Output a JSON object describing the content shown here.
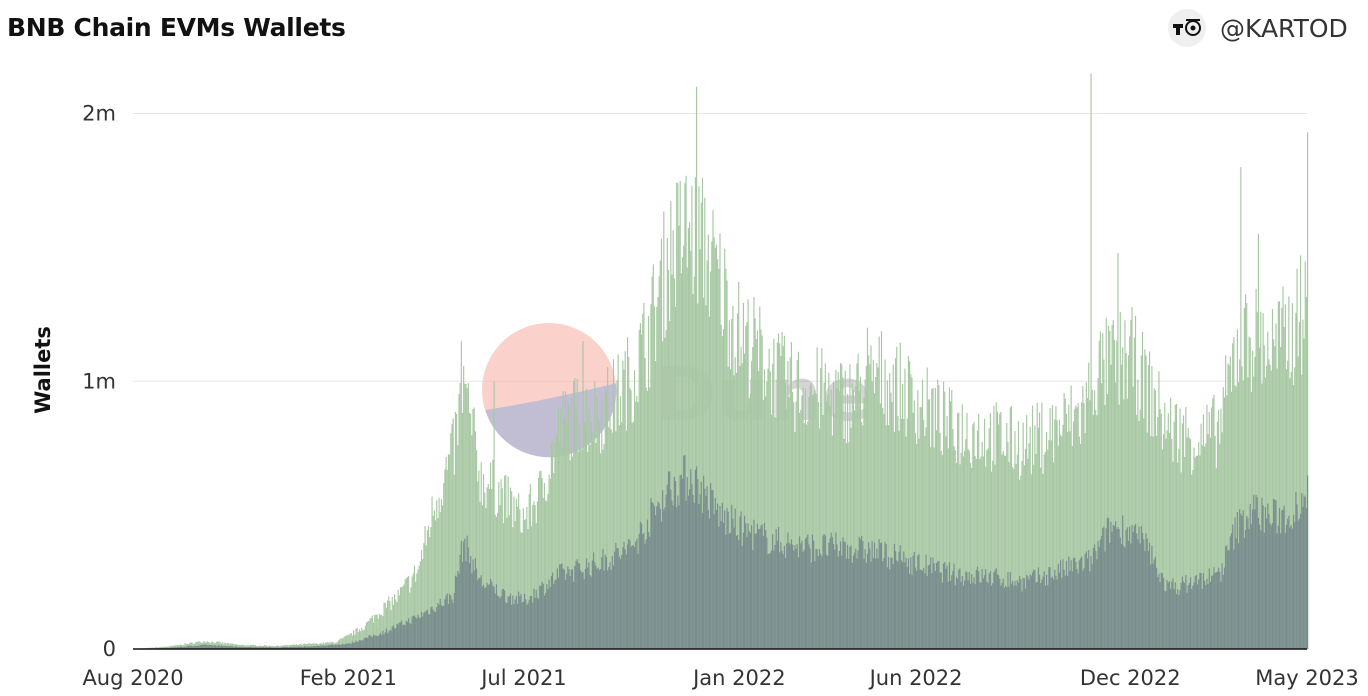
{
  "header": {
    "title": "BNB Chain EVMs Wallets",
    "author": "@KARTOD"
  },
  "watermark": {
    "text": "Dune"
  },
  "colors": {
    "series_total": "#a8c8a4",
    "series_base": "#7a8e8e",
    "grid": "#e6e6e6",
    "axis": "#111111",
    "watermark_pink": "#f7b4a8",
    "watermark_blue": "#a8b4d6"
  },
  "chart_data": {
    "type": "bar",
    "stacked": false,
    "title": "BNB Chain EVMs Wallets",
    "ylabel": "Wallets",
    "xlabel": "",
    "ylim": [
      0,
      2200000
    ],
    "xlim": [
      "2020-08-01",
      "2023-05-01"
    ],
    "grid": true,
    "y_ticks": [
      {
        "value": 0,
        "label": "0"
      },
      {
        "value": 1000000,
        "label": "1m"
      },
      {
        "value": 2000000,
        "label": "2m"
      }
    ],
    "x_ticks": [
      {
        "date": "2020-08-01",
        "label": "Aug 2020"
      },
      {
        "date": "2021-02-01",
        "label": "Feb 2021"
      },
      {
        "date": "2021-07-01",
        "label": "Jul 2021"
      },
      {
        "date": "2022-01-01",
        "label": "Jan 2022"
      },
      {
        "date": "2022-06-01",
        "label": "Jun 2022"
      },
      {
        "date": "2022-12-01",
        "label": "Dec 2022"
      },
      {
        "date": "2023-05-01",
        "label": "May 2023"
      }
    ],
    "series": [
      {
        "role": "total",
        "points": [
          [
            "2020-08-01",
            0
          ],
          [
            "2020-09-01",
            10000
          ],
          [
            "2020-10-01",
            30000
          ],
          [
            "2020-11-01",
            15000
          ],
          [
            "2020-12-01",
            12000
          ],
          [
            "2021-01-01",
            20000
          ],
          [
            "2021-01-20",
            25000
          ],
          [
            "2021-02-01",
            50000
          ],
          [
            "2021-02-15",
            90000
          ],
          [
            "2021-03-01",
            150000
          ],
          [
            "2021-03-15",
            200000
          ],
          [
            "2021-04-01",
            300000
          ],
          [
            "2021-04-15",
            550000
          ],
          [
            "2021-05-01",
            750000
          ],
          [
            "2021-05-10",
            1000000
          ],
          [
            "2021-05-25",
            650000
          ],
          [
            "2021-06-10",
            600000
          ],
          [
            "2021-06-25",
            520000
          ],
          [
            "2021-07-01",
            500000
          ],
          [
            "2021-07-15",
            600000
          ],
          [
            "2021-08-01",
            850000
          ],
          [
            "2021-08-15",
            900000
          ],
          [
            "2021-09-01",
            900000
          ],
          [
            "2021-09-15",
            950000
          ],
          [
            "2021-10-01",
            1050000
          ],
          [
            "2021-10-15",
            1200000
          ],
          [
            "2021-11-01",
            1500000
          ],
          [
            "2021-11-15",
            1600000
          ],
          [
            "2021-12-01",
            1550000
          ],
          [
            "2021-12-15",
            1400000
          ],
          [
            "2022-01-01",
            1200000
          ],
          [
            "2022-01-15",
            1150000
          ],
          [
            "2022-02-01",
            1050000
          ],
          [
            "2022-02-15",
            1000000
          ],
          [
            "2022-03-01",
            1000000
          ],
          [
            "2022-04-01",
            950000
          ],
          [
            "2022-05-01",
            1050000
          ],
          [
            "2022-06-01",
            950000
          ],
          [
            "2022-07-01",
            850000
          ],
          [
            "2022-08-01",
            820000
          ],
          [
            "2022-09-01",
            780000
          ],
          [
            "2022-10-01",
            850000
          ],
          [
            "2022-10-20",
            900000
          ],
          [
            "2022-11-01",
            1050000
          ],
          [
            "2022-11-15",
            1100000
          ],
          [
            "2022-12-01",
            1120000
          ],
          [
            "2022-12-15",
            1000000
          ],
          [
            "2023-01-01",
            850000
          ],
          [
            "2023-01-15",
            820000
          ],
          [
            "2023-02-01",
            800000
          ],
          [
            "2023-02-15",
            850000
          ],
          [
            "2023-03-01",
            1150000
          ],
          [
            "2023-03-15",
            1200000
          ],
          [
            "2023-04-01",
            1150000
          ],
          [
            "2023-04-15",
            1200000
          ],
          [
            "2023-05-01",
            1300000
          ]
        ],
        "spikes": [
          [
            "2021-05-08",
            1150000
          ],
          [
            "2021-06-05",
            1000000
          ],
          [
            "2021-08-20",
            1150000
          ],
          [
            "2021-11-25",
            2100000
          ],
          [
            "2022-04-20",
            1200000
          ],
          [
            "2022-10-28",
            2150000
          ],
          [
            "2022-11-20",
            1480000
          ],
          [
            "2023-03-05",
            1800000
          ],
          [
            "2023-03-20",
            1550000
          ],
          [
            "2023-04-25",
            1470000
          ],
          [
            "2023-05-01",
            1930000
          ]
        ]
      },
      {
        "role": "base",
        "points": [
          [
            "2020-08-01",
            0
          ],
          [
            "2020-09-01",
            5000
          ],
          [
            "2020-10-01",
            15000
          ],
          [
            "2020-11-01",
            8000
          ],
          [
            "2020-12-01",
            6000
          ],
          [
            "2021-01-01",
            10000
          ],
          [
            "2021-02-01",
            20000
          ],
          [
            "2021-03-01",
            60000
          ],
          [
            "2021-04-01",
            120000
          ],
          [
            "2021-05-01",
            200000
          ],
          [
            "2021-05-10",
            400000
          ],
          [
            "2021-05-25",
            250000
          ],
          [
            "2021-06-15",
            200000
          ],
          [
            "2021-07-01",
            180000
          ],
          [
            "2021-08-01",
            280000
          ],
          [
            "2021-09-01",
            320000
          ],
          [
            "2021-10-01",
            380000
          ],
          [
            "2021-11-01",
            600000
          ],
          [
            "2021-11-20",
            650000
          ],
          [
            "2021-12-15",
            500000
          ],
          [
            "2022-01-01",
            450000
          ],
          [
            "2022-02-01",
            400000
          ],
          [
            "2022-03-01",
            380000
          ],
          [
            "2022-04-01",
            380000
          ],
          [
            "2022-05-01",
            360000
          ],
          [
            "2022-06-01",
            320000
          ],
          [
            "2022-07-01",
            280000
          ],
          [
            "2022-08-01",
            270000
          ],
          [
            "2022-09-01",
            250000
          ],
          [
            "2022-10-01",
            290000
          ],
          [
            "2022-10-28",
            330000
          ],
          [
            "2022-11-15",
            460000
          ],
          [
            "2022-12-01",
            440000
          ],
          [
            "2022-12-15",
            380000
          ],
          [
            "2023-01-01",
            230000
          ],
          [
            "2023-01-15",
            240000
          ],
          [
            "2023-02-15",
            280000
          ],
          [
            "2023-03-01",
            450000
          ],
          [
            "2023-03-15",
            520000
          ],
          [
            "2023-04-01",
            490000
          ],
          [
            "2023-04-15",
            500000
          ],
          [
            "2023-05-01",
            600000
          ]
        ]
      }
    ]
  }
}
